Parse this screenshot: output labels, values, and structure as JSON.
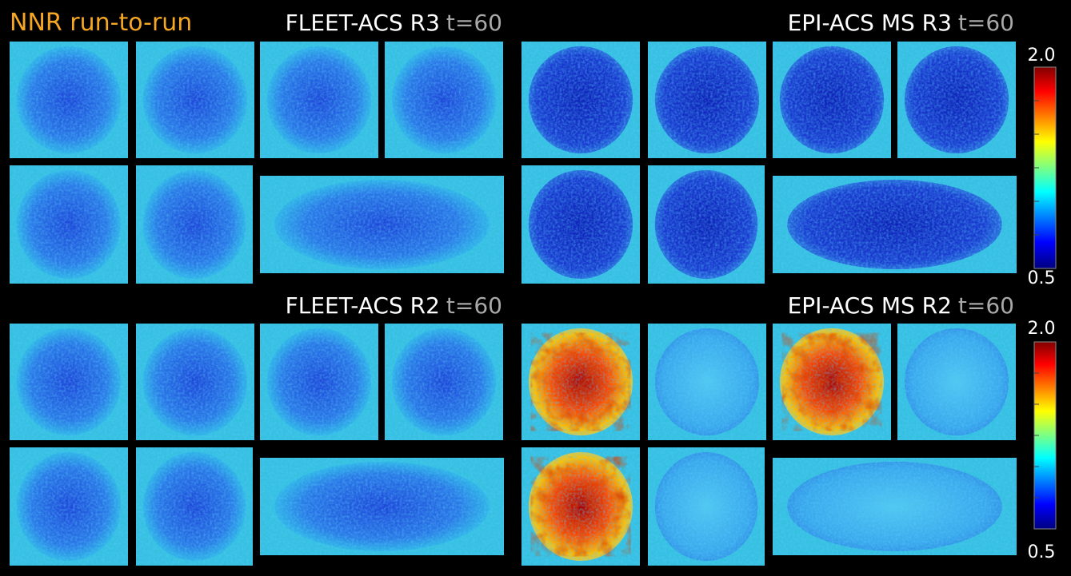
{
  "figure": {
    "title": "NNR run-to-run",
    "panels": [
      {
        "label": "FLEET-ACS R3",
        "time": "t=60"
      },
      {
        "label": "EPI-ACS MS R3",
        "time": "t=60"
      },
      {
        "label": "FLEET-ACS R2",
        "time": "t=60"
      },
      {
        "label": "EPI-ACS MS R2",
        "time": "t=60"
      }
    ],
    "colorbars": [
      {
        "max": "2.0",
        "min": "0.5"
      },
      {
        "max": "2.0",
        "min": "0.5"
      }
    ]
  }
}
